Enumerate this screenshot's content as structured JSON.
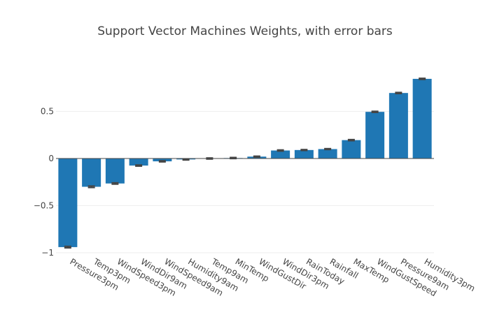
{
  "chart_data": {
    "type": "bar",
    "title": "Support Vector Machines Weights, with error bars",
    "xlabel": "",
    "ylabel": "",
    "ylim": [
      -1.0,
      1.0
    ],
    "yticks": [
      -1,
      -0.5,
      0,
      0.5
    ],
    "ytick_labels": [
      "−1",
      "−0.5",
      "0",
      "0.5"
    ],
    "grid": true,
    "categories": [
      "Pressure3pm",
      "Temp3pm",
      "WindSpeed3pm",
      "WindDir9am",
      "WindSpeed9am",
      "Humidity9am",
      "Temp9am",
      "MinTemp",
      "WindGustDir",
      "WindDir3pm",
      "RainToday",
      "Rainfall",
      "MaxTemp",
      "WindGustSpeed",
      "Pressure9am",
      "Humidity3pm"
    ],
    "values": [
      -0.94,
      -0.3,
      -0.265,
      -0.075,
      -0.03,
      -0.01,
      0.0,
      0.005,
      0.02,
      0.085,
      0.09,
      0.1,
      0.195,
      0.495,
      0.695,
      0.845
    ],
    "errors": [
      0.008,
      0.008,
      0.007,
      0.006,
      0.006,
      0.006,
      0.006,
      0.006,
      0.005,
      0.006,
      0.005,
      0.005,
      0.006,
      0.006,
      0.006,
      0.006
    ],
    "colors": {
      "bar": "#1f77b4",
      "error": "#444444",
      "grid": "#eeeeee",
      "zero": "#444444"
    }
  }
}
